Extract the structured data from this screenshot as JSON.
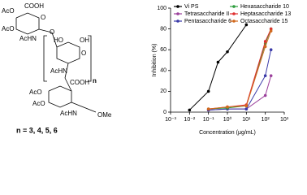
{
  "structure": {
    "labels": [
      "AcO",
      "COOH",
      "AcO",
      "AcHN",
      "O",
      "O",
      "HO",
      "OH",
      "O",
      "AcHN",
      "n",
      "COOH",
      "AcO",
      "AcO",
      "AcHN",
      "OMe"
    ],
    "caption": "n = 3, 4, 5, 6"
  },
  "chart_data": {
    "type": "line",
    "x_label": "Concentration (μg/mL)",
    "y_label": "Inhibition (%)",
    "xlog": true,
    "xlim": [
      0.001,
      1000
    ],
    "xticks": [
      {
        "value": 0.001,
        "label": "10⁻³"
      },
      {
        "value": 0.01,
        "label": "10⁻²"
      },
      {
        "value": 0.1,
        "label": "10⁻¹"
      },
      {
        "value": 1,
        "label": "10⁰"
      },
      {
        "value": 10,
        "label": "10¹"
      },
      {
        "value": 100,
        "label": "10²"
      },
      {
        "value": 1000,
        "label": "10³"
      }
    ],
    "ylim": [
      0,
      100
    ],
    "yticks": [
      0,
      20,
      40,
      60,
      80,
      100
    ],
    "series": [
      {
        "name": "Vi PS",
        "color": "#000000",
        "x": [
          0.01,
          0.1,
          0.32,
          1,
          10
        ],
        "values": [
          2,
          20,
          48,
          58,
          84
        ]
      },
      {
        "name": "Tetrasaccharide II",
        "color": "#9b3f9b",
        "x": [
          0.1,
          1,
          10,
          100,
          200
        ],
        "values": [
          2,
          3,
          3,
          16,
          35
        ]
      },
      {
        "name": "Pentasaccharide 6",
        "color": "#3a3aa8",
        "x": [
          0.1,
          1,
          10,
          100,
          200
        ],
        "values": [
          2,
          3,
          3,
          35,
          60
        ]
      },
      {
        "name": "Hexasaccharide 10",
        "color": "#2e9e3e",
        "x": [
          0.1,
          1,
          10,
          100,
          200
        ],
        "values": [
          3,
          4,
          6,
          66,
          80
        ]
      },
      {
        "name": "Heptasaccharide 13",
        "color": "#e03030",
        "x": [
          0.1,
          1,
          10,
          100,
          200
        ],
        "values": [
          3,
          5,
          7,
          68,
          80
        ]
      },
      {
        "name": "Octasaccharide 15",
        "color": "#d2691e",
        "x": [
          0.1,
          1,
          10,
          100,
          200
        ],
        "values": [
          3,
          5,
          6,
          63,
          78
        ]
      }
    ]
  }
}
